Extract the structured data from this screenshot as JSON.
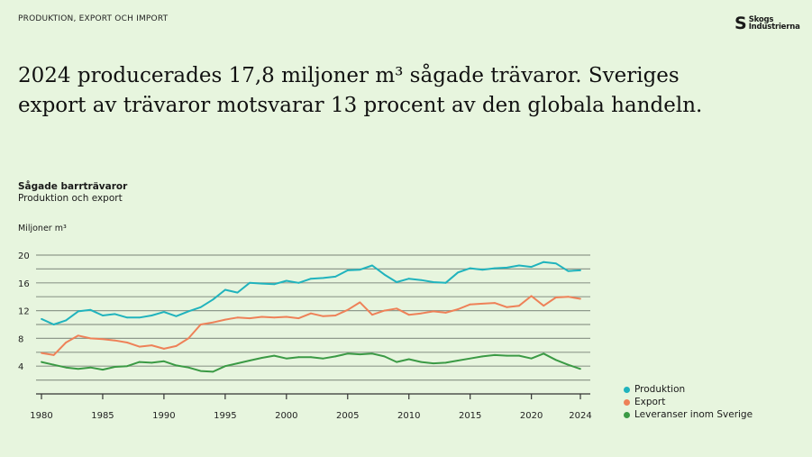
{
  "header": {
    "kicker": "PRODUKTION, EXPORT OCH IMPORT",
    "logo_text": "Skogs Industrierna",
    "logo_line1": "Skogs",
    "logo_line2": "Industrierna",
    "headline_line1": "2024 producerades 17,8 miljoner m³ sågade trävaror. Sveriges",
    "headline_line2": "export av trävaror motsvarar 13 procent av den globala handeln."
  },
  "chart_data": {
    "type": "line",
    "title": "Sågade barrträvaror",
    "subtitle": "Produktion och export",
    "ylabel": "Miljoner m³",
    "xlabel": "",
    "ylim": [
      0,
      20
    ],
    "yticks": [
      4,
      8,
      12,
      16,
      20
    ],
    "ygrid_step": 2,
    "xlim": [
      1980,
      2024
    ],
    "xticks": [
      1980,
      1985,
      1990,
      1995,
      2000,
      2005,
      2010,
      2015,
      2020,
      2024
    ],
    "grid": true,
    "legend_position": "bottom-right",
    "x": [
      1980,
      1981,
      1982,
      1983,
      1984,
      1985,
      1986,
      1987,
      1988,
      1989,
      1990,
      1991,
      1992,
      1993,
      1994,
      1995,
      1996,
      1997,
      1998,
      1999,
      2000,
      2001,
      2002,
      2003,
      2004,
      2005,
      2006,
      2007,
      2008,
      2009,
      2010,
      2011,
      2012,
      2013,
      2014,
      2015,
      2016,
      2017,
      2018,
      2019,
      2020,
      2021,
      2022,
      2023,
      2024
    ],
    "series": [
      {
        "name": "Produktion",
        "color": "#20b3bd",
        "values": [
          10.8,
          10.0,
          10.6,
          11.9,
          12.1,
          11.3,
          11.5,
          11.0,
          11.0,
          11.3,
          11.8,
          11.2,
          11.9,
          12.5,
          13.6,
          15.0,
          14.6,
          16.0,
          15.9,
          15.8,
          16.3,
          16.0,
          16.6,
          16.7,
          16.9,
          17.8,
          17.9,
          18.5,
          17.2,
          16.1,
          16.6,
          16.4,
          16.1,
          16.0,
          17.5,
          18.1,
          17.9,
          18.1,
          18.2,
          18.5,
          18.3,
          19.0,
          18.8,
          17.7,
          17.8
        ]
      },
      {
        "name": "Export",
        "color": "#ee8158",
        "values": [
          5.9,
          5.6,
          7.4,
          8.4,
          8.0,
          7.9,
          7.7,
          7.4,
          6.8,
          7.0,
          6.5,
          6.9,
          8.0,
          10.0,
          10.3,
          10.7,
          11.0,
          10.9,
          11.1,
          11.0,
          11.1,
          10.9,
          11.6,
          11.2,
          11.3,
          12.1,
          13.2,
          11.4,
          12.0,
          12.3,
          11.4,
          11.6,
          11.9,
          11.7,
          12.2,
          12.9,
          13.0,
          13.1,
          12.5,
          12.7,
          14.1,
          12.7,
          13.9,
          14.0,
          13.7
        ]
      },
      {
        "name": "Leveranser inom Sverige",
        "color": "#3b9a45",
        "values": [
          4.6,
          4.2,
          3.8,
          3.6,
          3.8,
          3.5,
          3.9,
          4.0,
          4.6,
          4.5,
          4.7,
          4.1,
          3.8,
          3.3,
          3.2,
          4.0,
          4.4,
          4.8,
          5.2,
          5.5,
          5.1,
          5.3,
          5.3,
          5.1,
          5.4,
          5.8,
          5.7,
          5.8,
          5.4,
          4.6,
          5.0,
          4.6,
          4.4,
          4.5,
          4.8,
          5.1,
          5.4,
          5.6,
          5.5,
          5.5,
          5.1,
          5.8,
          4.9,
          4.2,
          3.6
        ]
      }
    ]
  }
}
